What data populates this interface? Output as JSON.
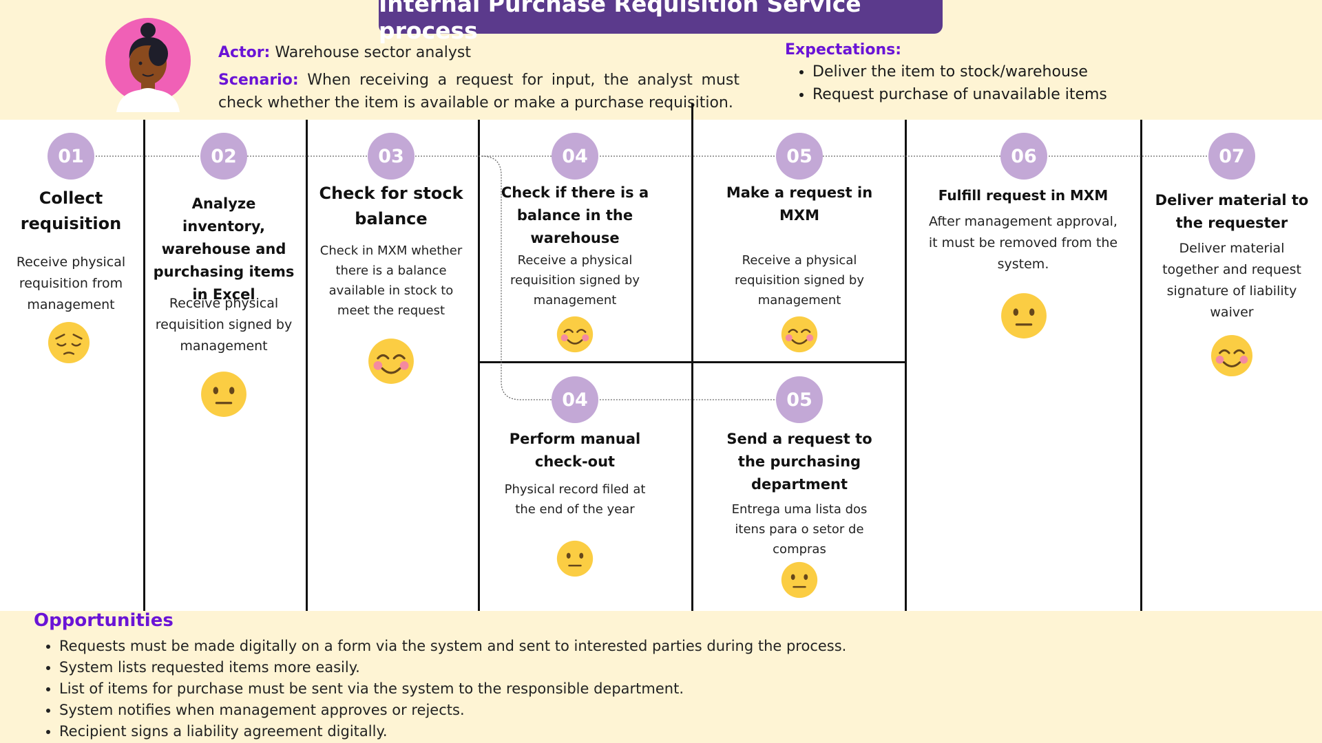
{
  "header": {
    "title": "Internal Purchase Requisition Service process",
    "actor_label": "Actor:",
    "actor_value": "Warehouse sector analyst",
    "scenario_label": "Scenario:",
    "scenario_value": "When receiving a request for input, the analyst must check whether the item is available or make a purchase requisition.",
    "expectations_label": "Expectations:",
    "expectations": [
      "Deliver the item to stock/warehouse",
      "Request purchase of unavailable items"
    ]
  },
  "steps": [
    {
      "number": "01",
      "title": "Collect requisition",
      "description": "Receive physical requisition from management",
      "emoji": "pensive-face-icon"
    },
    {
      "number": "02",
      "title": "Analyze inventory, warehouse and purchasing items in Excel",
      "description": "Receive physical requisition signed by management",
      "emoji": "neutral-face-icon"
    },
    {
      "number": "03",
      "title": "Check for stock balance",
      "description": "Check in MXM whether there is a balance available in stock to meet the request",
      "emoji": "smiling-face-icon"
    },
    {
      "number": "04",
      "title": "Check if there is a balance in the warehouse",
      "description": "Receive a physical requisition signed by management",
      "emoji": "smiling-face-icon"
    },
    {
      "number": "05",
      "title": "Make a request in MXM",
      "description": "Receive a physical requisition signed by management",
      "emoji": "smiling-face-icon"
    },
    {
      "number": "06",
      "title": "Fulfill request in MXM",
      "description": "After management approval, it must be removed from the system.",
      "emoji": "neutral-face-icon"
    },
    {
      "number": "07",
      "title": "Deliver material to the requester",
      "description": "Deliver material together and request signature of liability waiver",
      "emoji": "smiling-face-icon"
    },
    {
      "number": "04",
      "title": "Perform manual check-out",
      "description": "Physical record filed at the end of the year",
      "emoji": "neutral-face-icon"
    },
    {
      "number": "05",
      "title": "Send a request to the purchasing department",
      "description": "Entrega uma lista dos itens para o setor de compras",
      "emoji": "neutral-face-icon"
    }
  ],
  "opportunities": {
    "title": "Opportunities",
    "items": [
      "Requests must be made digitally on a form via the system and sent to interested parties during the process.",
      "System lists requested items more easily.",
      "List of items for purchase must be sent via the system to the responsible department.",
      "System notifies when management approves or rejects.",
      "Recipient signs a liability agreement digitally."
    ]
  },
  "colors": {
    "band": "#fef4d4",
    "title_bg": "#5b3a8c",
    "label": "#6a14d6",
    "circle": "#c3a8d6",
    "emoji": "#fbcd43",
    "blush": "#f48aa0"
  }
}
